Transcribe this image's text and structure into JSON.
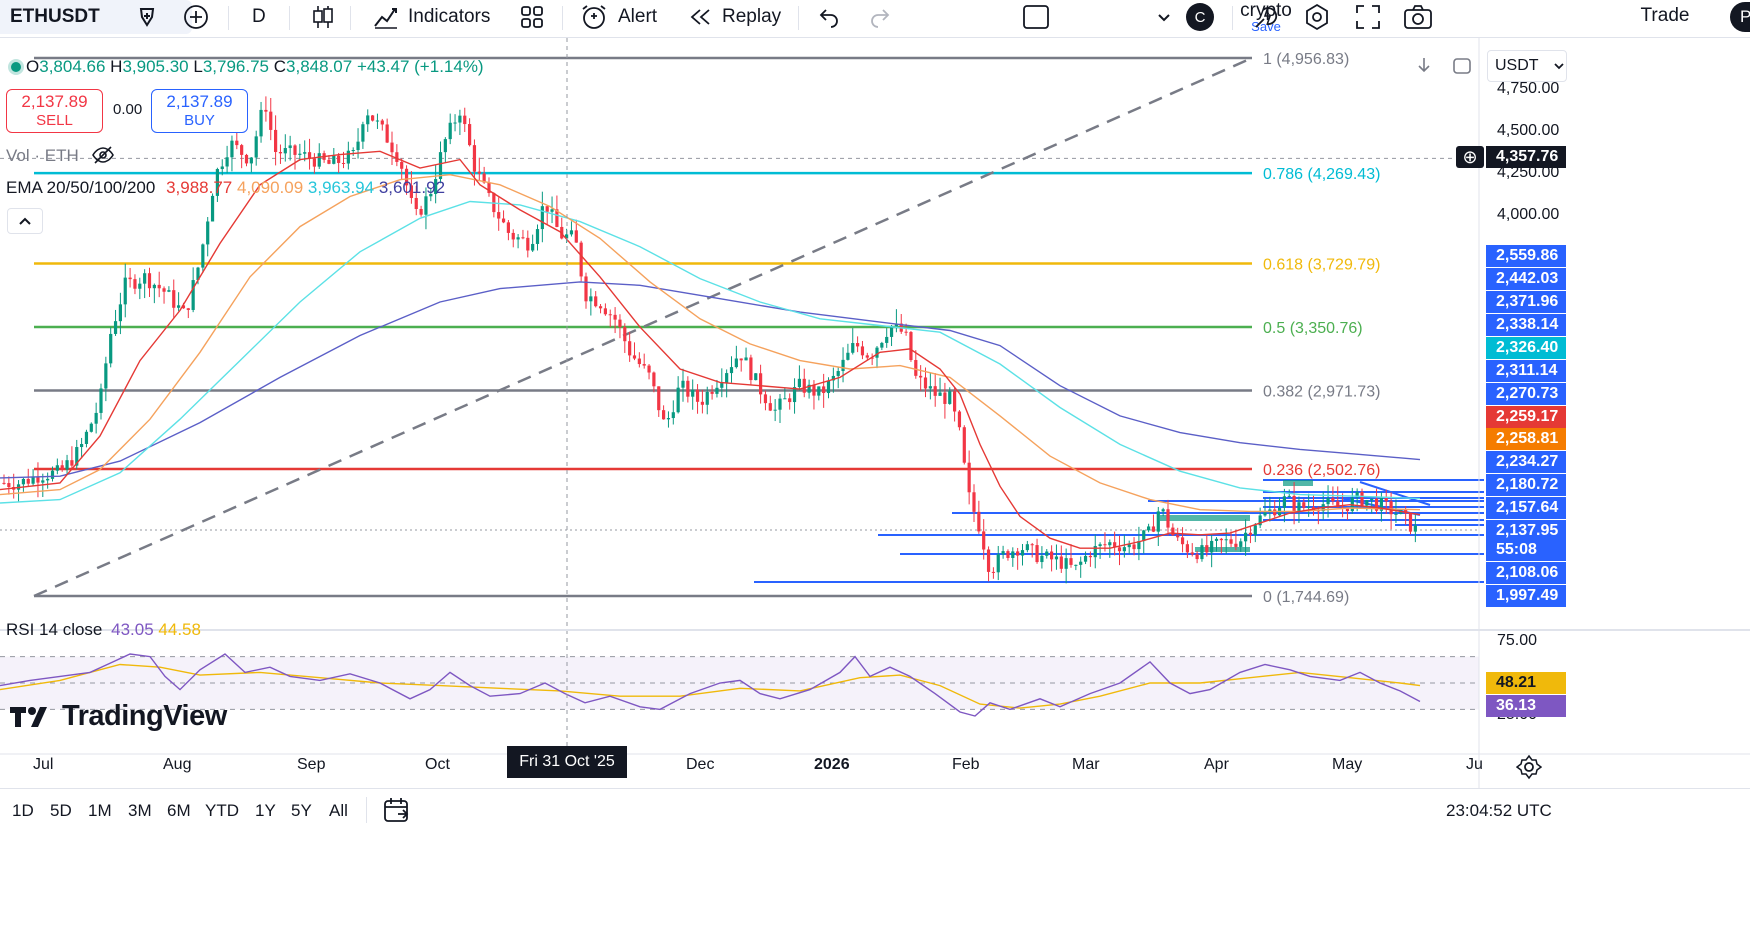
{
  "toolbar": {
    "symbol": "ETHUSDT",
    "interval": "D",
    "indicators_label": "Indicators",
    "alert_label": "Alert",
    "replay_label": "Replay",
    "layout_name": "crypto",
    "layout_save": "Save",
    "user_initial": "C",
    "trade_label": "Trade",
    "publish_initial": "P"
  },
  "legend": {
    "open_label": "O",
    "open": "3,804.66",
    "high_label": "H",
    "high": "3,905.30",
    "low_label": "L",
    "low": "3,796.75",
    "close_label": "C",
    "close": "3,848.07",
    "change": "+43.47 (+1.14%)",
    "sell_price": "2,137.89",
    "sell_label": "SELL",
    "spread": "0.00",
    "buy_price": "2,137.89",
    "buy_label": "BUY",
    "vol_label": "Vol · ETH",
    "ema_label": "EMA 20/50/100/200",
    "ema20": "3,988.77",
    "ema50": "4,090.09",
    "ema100": "3,963.94",
    "ema200": "3,601.92",
    "rsi_label": "RSI 14 close",
    "rsi_value": "43.05",
    "rsi_ma": "44.58",
    "brand": "TradingView"
  },
  "currency": "USDT",
  "fib_levels": [
    {
      "label": "1 (4,956.83)",
      "price": 4956.83,
      "color": "#787b86"
    },
    {
      "label": "0.786 (4,269.43)",
      "price": 4269.43,
      "color": "#00bcd4"
    },
    {
      "label": "0.618 (3,729.79)",
      "price": 3729.79,
      "color": "#f0b90b"
    },
    {
      "label": "0.5 (3,350.76)",
      "price": 3350.76,
      "color": "#4caf50"
    },
    {
      "label": "0.382 (2,971.73)",
      "price": 2971.73,
      "color": "#787b86"
    },
    {
      "label": "0.236 (2,502.76)",
      "price": 2502.76,
      "color": "#e53935"
    },
    {
      "label": "0 (1,744.69)",
      "price": 1744.69,
      "color": "#787b86"
    }
  ],
  "price_ticks": [
    "4,750.00",
    "4,500.00",
    "4,250.00",
    "4,000.00"
  ],
  "crosshair_price": "4,357.76",
  "price_tags": [
    {
      "text": "2,559.86",
      "color": "#2962ff"
    },
    {
      "text": "2,442.03",
      "color": "#2962ff"
    },
    {
      "text": "2,371.96",
      "color": "#2962ff"
    },
    {
      "text": "2,338.14",
      "color": "#2962ff"
    },
    {
      "text": "2,326.40",
      "color": "#00bcd4"
    },
    {
      "text": "2,311.14",
      "color": "#2962ff"
    },
    {
      "text": "2,270.73",
      "color": "#2962ff"
    },
    {
      "text": "2,259.17",
      "color": "#e53935"
    },
    {
      "text": "2,258.81",
      "color": "#f57c00"
    },
    {
      "text": "2,234.27",
      "color": "#2962ff"
    },
    {
      "text": "2,180.72",
      "color": "#2962ff"
    },
    {
      "text": "2,157.64",
      "color": "#2962ff"
    },
    {
      "text": "2,137.95",
      "color": "#2962ff"
    },
    {
      "text": "55:08",
      "color": "#2962ff"
    },
    {
      "text": "2,108.06",
      "color": "#2962ff"
    },
    {
      "text": "1,997.49",
      "color": "#2962ff"
    }
  ],
  "rsi_ticks": [
    "75.00",
    "25.00"
  ],
  "rsi_tags": [
    {
      "text": "48.21",
      "color": "#f0b90b",
      "text_color": "#131722"
    },
    {
      "text": "36.13",
      "color": "#7e57c2",
      "text_color": "#ffffff"
    }
  ],
  "time_ticks": [
    "Jul",
    "Aug",
    "Sep",
    "Oct",
    "Dec",
    "2026",
    "Feb",
    "Mar",
    "Apr",
    "May",
    "Ju"
  ],
  "crosshair_date": "Fri 31 Oct '25",
  "ranges": [
    "1D",
    "5D",
    "1M",
    "3M",
    "6M",
    "YTD",
    "1Y",
    "5Y",
    "All"
  ],
  "clock": "23:04:52 UTC",
  "colors": {
    "up": "#089981",
    "down": "#f23645",
    "ema20": "#e53935",
    "ema50": "#f5a25d",
    "ema100": "#5ce1e6",
    "ema200": "#5b5fc7",
    "hline": "#2962ff",
    "rsi": "#7e57c2",
    "rsi_ma": "#f0b90b"
  },
  "chart_data": {
    "type": "candlestick",
    "price_range": [
      1700,
      4960
    ],
    "price_points": [
      [
        0,
        2420
      ],
      [
        20,
        2420
      ],
      [
        40,
        2470
      ],
      [
        60,
        2480
      ],
      [
        80,
        2620
      ],
      [
        100,
        2900
      ],
      [
        110,
        3300
      ],
      [
        125,
        3600
      ],
      [
        145,
        3650
      ],
      [
        165,
        3560
      ],
      [
        185,
        3420
      ],
      [
        200,
        3750
      ],
      [
        215,
        4250
      ],
      [
        230,
        4450
      ],
      [
        250,
        4350
      ],
      [
        265,
        4700
      ],
      [
        275,
        4400
      ],
      [
        300,
        4380
      ],
      [
        330,
        4320
      ],
      [
        355,
        4380
      ],
      [
        365,
        4660
      ],
      [
        385,
        4500
      ],
      [
        400,
        4350
      ],
      [
        415,
        4000
      ],
      [
        430,
        4150
      ],
      [
        445,
        4460
      ],
      [
        460,
        4650
      ],
      [
        475,
        4300
      ],
      [
        490,
        4100
      ],
      [
        510,
        3900
      ],
      [
        530,
        3850
      ],
      [
        545,
        4100
      ],
      [
        560,
        3900
      ],
      [
        575,
        3880
      ],
      [
        585,
        3550
      ],
      [
        600,
        3500
      ],
      [
        615,
        3400
      ],
      [
        630,
        3200
      ],
      [
        650,
        3050
      ],
      [
        665,
        2750
      ],
      [
        680,
        3000
      ],
      [
        700,
        2900
      ],
      [
        720,
        3050
      ],
      [
        740,
        3200
      ],
      [
        760,
        2980
      ],
      [
        775,
        2850
      ],
      [
        800,
        3000
      ],
      [
        820,
        2950
      ],
      [
        835,
        3050
      ],
      [
        855,
        3250
      ],
      [
        870,
        3180
      ],
      [
        890,
        3360
      ],
      [
        905,
        3310
      ],
      [
        915,
        3050
      ],
      [
        935,
        2950
      ],
      [
        950,
        2920
      ],
      [
        960,
        2700
      ],
      [
        968,
        2350
      ],
      [
        980,
        2150
      ],
      [
        990,
        1900
      ],
      [
        1005,
        2000
      ],
      [
        1020,
        2040
      ],
      [
        1040,
        1980
      ],
      [
        1060,
        1950
      ],
      [
        1075,
        1900
      ],
      [
        1090,
        2010
      ],
      [
        1110,
        2060
      ],
      [
        1130,
        2040
      ],
      [
        1150,
        2120
      ],
      [
        1160,
        2280
      ],
      [
        1175,
        2080
      ],
      [
        1190,
        2020
      ],
      [
        1205,
        2000
      ],
      [
        1220,
        2060
      ],
      [
        1240,
        2080
      ],
      [
        1255,
        2190
      ],
      [
        1270,
        2250
      ],
      [
        1285,
        2320
      ],
      [
        1300,
        2270
      ],
      [
        1320,
        2300
      ],
      [
        1340,
        2270
      ],
      [
        1360,
        2330
      ],
      [
        1380,
        2290
      ],
      [
        1400,
        2230
      ],
      [
        1415,
        2140
      ]
    ],
    "ema20": [
      [
        0,
        2380
      ],
      [
        60,
        2420
      ],
      [
        100,
        2700
      ],
      [
        140,
        3150
      ],
      [
        180,
        3450
      ],
      [
        220,
        3850
      ],
      [
        260,
        4200
      ],
      [
        300,
        4350
      ],
      [
        340,
        4380
      ],
      [
        380,
        4400
      ],
      [
        420,
        4300
      ],
      [
        460,
        4350
      ],
      [
        480,
        4200
      ],
      [
        520,
        4050
      ],
      [
        560,
        3920
      ],
      [
        600,
        3650
      ],
      [
        640,
        3350
      ],
      [
        680,
        3100
      ],
      [
        720,
        3020
      ],
      [
        760,
        3000
      ],
      [
        800,
        2980
      ],
      [
        840,
        3050
      ],
      [
        880,
        3200
      ],
      [
        910,
        3220
      ],
      [
        940,
        3100
      ],
      [
        960,
        2950
      ],
      [
        980,
        2650
      ],
      [
        1000,
        2400
      ],
      [
        1020,
        2220
      ],
      [
        1050,
        2090
      ],
      [
        1080,
        2030
      ],
      [
        1110,
        2030
      ],
      [
        1140,
        2070
      ],
      [
        1170,
        2120
      ],
      [
        1200,
        2110
      ],
      [
        1230,
        2120
      ],
      [
        1260,
        2180
      ],
      [
        1290,
        2240
      ],
      [
        1320,
        2270
      ],
      [
        1350,
        2290
      ],
      [
        1380,
        2270
      ],
      [
        1420,
        2230
      ]
    ],
    "ema50": [
      [
        0,
        2350
      ],
      [
        60,
        2380
      ],
      [
        100,
        2500
      ],
      [
        150,
        2800
      ],
      [
        200,
        3200
      ],
      [
        250,
        3650
      ],
      [
        300,
        3950
      ],
      [
        350,
        4130
      ],
      [
        400,
        4230
      ],
      [
        450,
        4260
      ],
      [
        500,
        4200
      ],
      [
        550,
        4070
      ],
      [
        600,
        3880
      ],
      [
        650,
        3620
      ],
      [
        700,
        3400
      ],
      [
        750,
        3250
      ],
      [
        800,
        3150
      ],
      [
        850,
        3100
      ],
      [
        900,
        3120
      ],
      [
        950,
        3050
      ],
      [
        1000,
        2820
      ],
      [
        1050,
        2580
      ],
      [
        1100,
        2420
      ],
      [
        1150,
        2320
      ],
      [
        1200,
        2260
      ],
      [
        1250,
        2250
      ],
      [
        1300,
        2250
      ],
      [
        1350,
        2270
      ],
      [
        1420,
        2260
      ]
    ],
    "ema100": [
      [
        0,
        2300
      ],
      [
        60,
        2320
      ],
      [
        120,
        2480
      ],
      [
        180,
        2800
      ],
      [
        240,
        3150
      ],
      [
        300,
        3500
      ],
      [
        360,
        3800
      ],
      [
        420,
        4000
      ],
      [
        470,
        4100
      ],
      [
        520,
        4080
      ],
      [
        580,
        3980
      ],
      [
        640,
        3830
      ],
      [
        700,
        3640
      ],
      [
        760,
        3500
      ],
      [
        820,
        3400
      ],
      [
        880,
        3360
      ],
      [
        940,
        3320
      ],
      [
        1000,
        3130
      ],
      [
        1060,
        2870
      ],
      [
        1120,
        2650
      ],
      [
        1180,
        2490
      ],
      [
        1240,
        2390
      ],
      [
        1300,
        2350
      ],
      [
        1360,
        2340
      ],
      [
        1420,
        2326
      ]
    ],
    "ema200": [
      [
        0,
        2450
      ],
      [
        60,
        2460
      ],
      [
        120,
        2550
      ],
      [
        200,
        2780
      ],
      [
        280,
        3050
      ],
      [
        360,
        3300
      ],
      [
        440,
        3500
      ],
      [
        500,
        3580
      ],
      [
        580,
        3620
      ],
      [
        640,
        3600
      ],
      [
        720,
        3520
      ],
      [
        800,
        3440
      ],
      [
        880,
        3380
      ],
      [
        950,
        3330
      ],
      [
        1000,
        3240
      ],
      [
        1060,
        3000
      ],
      [
        1120,
        2820
      ],
      [
        1180,
        2720
      ],
      [
        1240,
        2660
      ],
      [
        1300,
        2620
      ],
      [
        1360,
        2590
      ],
      [
        1420,
        2559
      ]
    ],
    "rsi": [
      [
        0,
        48
      ],
      [
        30,
        52
      ],
      [
        60,
        55
      ],
      [
        90,
        58
      ],
      [
        110,
        65
      ],
      [
        130,
        72
      ],
      [
        150,
        70
      ],
      [
        165,
        55
      ],
      [
        180,
        45
      ],
      [
        200,
        60
      ],
      [
        225,
        72
      ],
      [
        245,
        58
      ],
      [
        270,
        62
      ],
      [
        290,
        55
      ],
      [
        320,
        52
      ],
      [
        350,
        57
      ],
      [
        380,
        50
      ],
      [
        410,
        38
      ],
      [
        430,
        45
      ],
      [
        450,
        58
      ],
      [
        470,
        48
      ],
      [
        490,
        40
      ],
      [
        520,
        42
      ],
      [
        545,
        50
      ],
      [
        565,
        42
      ],
      [
        585,
        35
      ],
      [
        610,
        40
      ],
      [
        640,
        32
      ],
      [
        660,
        30
      ],
      [
        690,
        42
      ],
      [
        720,
        50
      ],
      [
        740,
        52
      ],
      [
        760,
        42
      ],
      [
        780,
        38
      ],
      [
        810,
        45
      ],
      [
        840,
        58
      ],
      [
        855,
        70
      ],
      [
        870,
        55
      ],
      [
        890,
        62
      ],
      [
        910,
        55
      ],
      [
        935,
        42
      ],
      [
        960,
        28
      ],
      [
        975,
        25
      ],
      [
        990,
        35
      ],
      [
        1010,
        30
      ],
      [
        1040,
        38
      ],
      [
        1060,
        32
      ],
      [
        1090,
        42
      ],
      [
        1120,
        50
      ],
      [
        1150,
        66
      ],
      [
        1170,
        50
      ],
      [
        1190,
        42
      ],
      [
        1210,
        45
      ],
      [
        1240,
        58
      ],
      [
        1265,
        64
      ],
      [
        1290,
        60
      ],
      [
        1310,
        55
      ],
      [
        1340,
        52
      ],
      [
        1360,
        58
      ],
      [
        1380,
        50
      ],
      [
        1400,
        44
      ],
      [
        1420,
        36
      ]
    ],
    "rsi_ma": [
      [
        0,
        45
      ],
      [
        60,
        52
      ],
      [
        120,
        64
      ],
      [
        160,
        62
      ],
      [
        200,
        56
      ],
      [
        260,
        58
      ],
      [
        320,
        54
      ],
      [
        380,
        50
      ],
      [
        440,
        48
      ],
      [
        500,
        46
      ],
      [
        560,
        44
      ],
      [
        620,
        40
      ],
      [
        680,
        40
      ],
      [
        740,
        46
      ],
      [
        800,
        44
      ],
      [
        860,
        54
      ],
      [
        900,
        56
      ],
      [
        940,
        48
      ],
      [
        980,
        34
      ],
      [
        1020,
        31
      ],
      [
        1060,
        34
      ],
      [
        1100,
        40
      ],
      [
        1150,
        50
      ],
      [
        1200,
        50
      ],
      [
        1250,
        54
      ],
      [
        1300,
        58
      ],
      [
        1350,
        54
      ],
      [
        1400,
        50
      ],
      [
        1420,
        48
      ]
    ]
  }
}
